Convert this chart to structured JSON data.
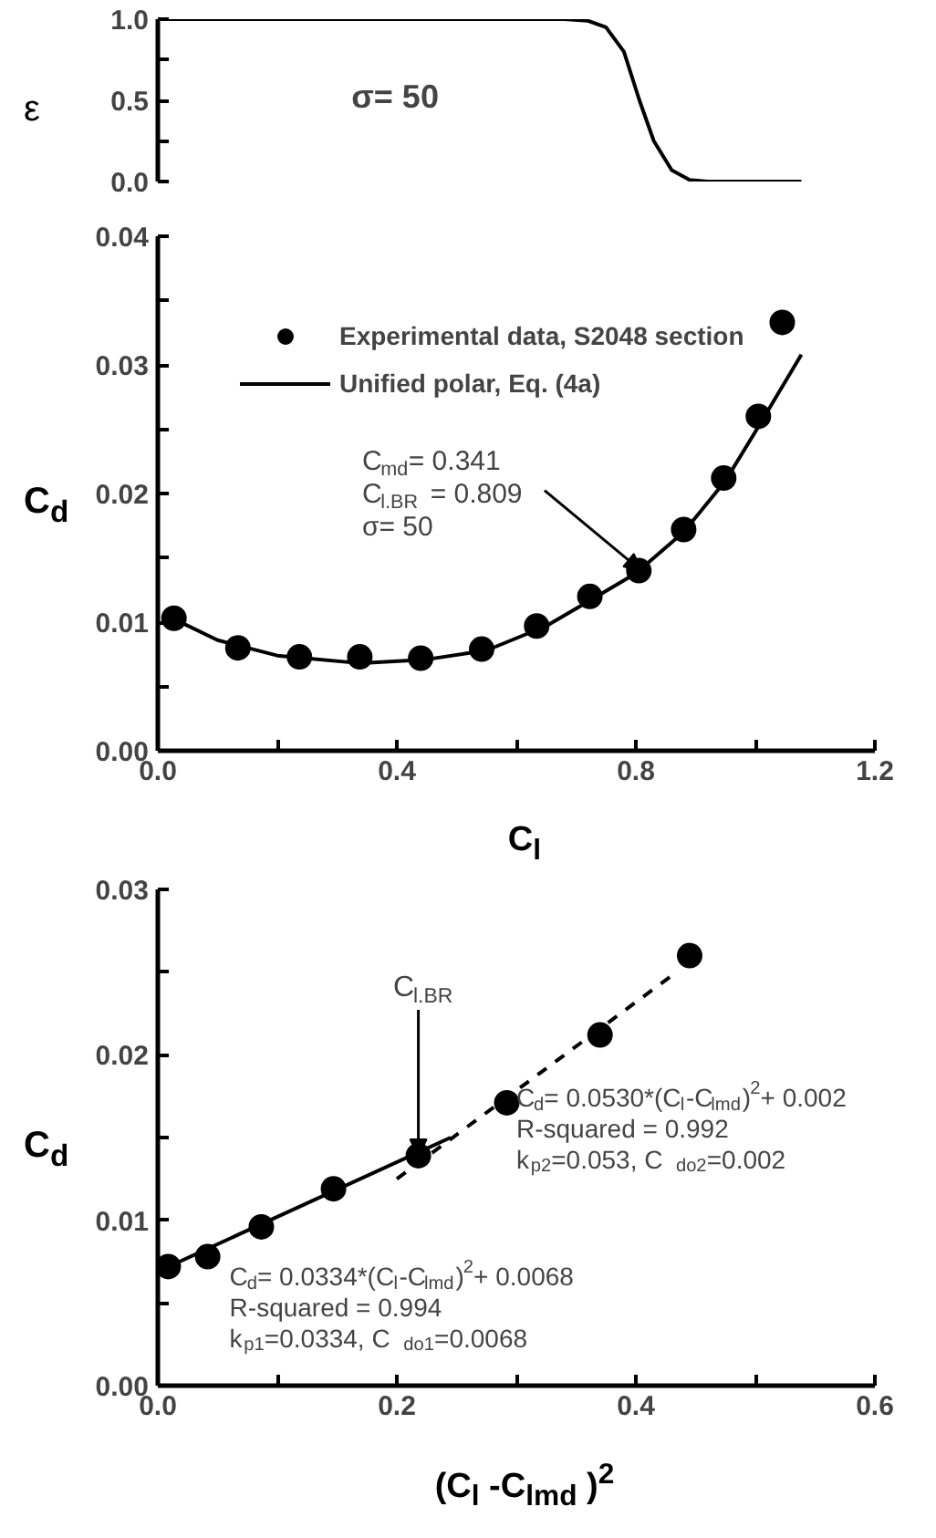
{
  "chart_data": [
    {
      "type": "line",
      "ylabel": "ε",
      "xlim": [
        0,
        1.2
      ],
      "ylim": [
        0,
        1.0
      ],
      "tick_labels": "y",
      "yticks": [
        {
          "value": 0,
          "label": "0.0"
        },
        {
          "value": 0.25,
          "label": null
        },
        {
          "value": 0.5,
          "label": "0.5"
        },
        {
          "value": 0.75,
          "label": null
        },
        {
          "value": 1.0,
          "label": "1.0"
        }
      ],
      "annotations": [
        "σ= 50"
      ],
      "grid": false,
      "legend": false,
      "series": [
        {
          "color": "#000000",
          "x": [
            0.0,
            0.68,
            0.72,
            0.75,
            0.78,
            0.806,
            0.83,
            0.86,
            0.89,
            0.92,
            1.077
          ],
          "values": [
            1,
            1,
            0.99,
            0.95,
            0.8,
            0.5,
            0.25,
            0.07,
            0.01,
            0,
            0
          ]
        }
      ]
    },
    {
      "type": "scatter",
      "xlabel": "C$_{l}$",
      "ylabel": "C$_{d}$",
      "xlim": [
        0,
        1.2
      ],
      "ylim": [
        0,
        0.04
      ],
      "xticks": [
        {
          "value": 0,
          "label": "0.0"
        },
        {
          "value": 0.2,
          "label": null
        },
        {
          "value": 0.4,
          "label": "0.4"
        },
        {
          "value": 0.6,
          "label": null
        },
        {
          "value": 0.8,
          "label": "0.8"
        },
        {
          "value": 1.0,
          "label": null
        },
        {
          "value": 1.2,
          "label": "1.2"
        }
      ],
      "yticks": [
        {
          "value": 0,
          "label": "0.00"
        },
        {
          "value": 0.005,
          "label": null
        },
        {
          "value": 0.01,
          "label": "0.01"
        },
        {
          "value": 0.015,
          "label": null
        },
        {
          "value": 0.02,
          "label": "0.02"
        },
        {
          "value": 0.025,
          "label": null
        },
        {
          "value": 0.03,
          "label": "0.03"
        },
        {
          "value": 0.035,
          "label": null
        },
        {
          "value": 0.04,
          "label": "0.04"
        }
      ],
      "annotations": [
        {
          "text": "C$_{md}$= 0.341\nC$_{l.BR}$ = 0.809\nσ= 50",
          "x": 0.809,
          "y": 0.014
        }
      ],
      "grid": false,
      "legend": "top left",
      "series": [
        {
          "name": "Experimental data, S2048 section",
          "marker": "circle",
          "color": "#000000",
          "x": [
            0.027,
            0.134,
            0.237,
            0.338,
            0.44,
            0.542,
            0.634,
            0.723,
            0.805,
            0.88,
            0.947,
            1.005,
            1.045
          ],
          "values": [
            0.0103,
            0.008,
            0.0073,
            0.0073,
            0.0072,
            0.0079,
            0.0097,
            0.012,
            0.014,
            0.0172,
            0.0212,
            0.026,
            0.0333
          ]
        },
        {
          "type": "line",
          "name": "Unified polar, Eq. (4a)",
          "color": "#000000",
          "x": [
            0.02,
            0.1,
            0.2,
            0.34,
            0.45,
            0.55,
            0.65,
            0.72,
            0.8,
            0.88,
            0.95,
            1.0,
            1.077
          ],
          "values": [
            0.0104,
            0.0086,
            0.0074,
            0.0068,
            0.0071,
            0.0078,
            0.0097,
            0.0116,
            0.0138,
            0.017,
            0.021,
            0.0248,
            0.0308
          ]
        }
      ]
    },
    {
      "type": "scatter",
      "xlabel": "(C$_{l}$ -C$_{lmd}$ )$^{2}$",
      "ylabel": "C$_{d}$",
      "xlim": [
        0,
        0.6
      ],
      "ylim": [
        0,
        0.03
      ],
      "xticks": [
        {
          "value": 0,
          "label": "0.0"
        },
        {
          "value": 0.1,
          "label": null
        },
        {
          "value": 0.2,
          "label": "0.2"
        },
        {
          "value": 0.3,
          "label": null
        },
        {
          "value": 0.4,
          "label": "0.4"
        },
        {
          "value": 0.5,
          "label": null
        },
        {
          "value": 0.6,
          "label": "0.6"
        }
      ],
      "yticks": [
        {
          "value": 0,
          "label": "0.00"
        },
        {
          "value": 0.005,
          "label": null
        },
        {
          "value": 0.01,
          "label": "0.01"
        },
        {
          "value": 0.015,
          "label": null
        },
        {
          "value": 0.02,
          "label": "0.02"
        },
        {
          "value": 0.025,
          "label": null
        },
        {
          "value": 0.03,
          "label": "0.03"
        }
      ],
      "annotations": [
        {
          "text": "C$_{l.BR}$",
          "x": 0.218,
          "y": 0.0139
        },
        "C$_{d}$= 0.0334*(C$_{l}$-C$_{lmd}$)$^{2}$+ 0.0068\nR-squared = 0.994\nk$_{p1}$=0.0334,  C$_{do1}$=0.0068",
        "C$_{d}$= 0.0530*(C$_{l}$-C$_{lmd}$)$^{2}$+ 0.002\nR-squared = 0.992\nk$_{p2}$=0.053,  C$_{do2}$=0.002"
      ],
      "grid": false,
      "legend": false,
      "series": [
        {
          "marker": "circle",
          "color": "#000000",
          "x": [
            0.0087,
            0.0417,
            0.0866,
            0.147,
            0.218,
            0.292,
            0.37,
            0.445
          ],
          "values": [
            0.0072,
            0.0078,
            0.0096,
            0.0119,
            0.0139,
            0.0171,
            0.0212,
            0.026
          ]
        },
        {
          "type": "line",
          "color": "#000000",
          "line_style": "solid",
          "x": [
            0.0,
            0.245
          ],
          "values": [
            0.0069,
            0.015
          ]
        },
        {
          "type": "line",
          "color": "#000000",
          "line_style": "dashed",
          "x": [
            0.2,
            0.434
          ],
          "values": [
            0.0125,
            0.025
          ]
        }
      ]
    }
  ]
}
